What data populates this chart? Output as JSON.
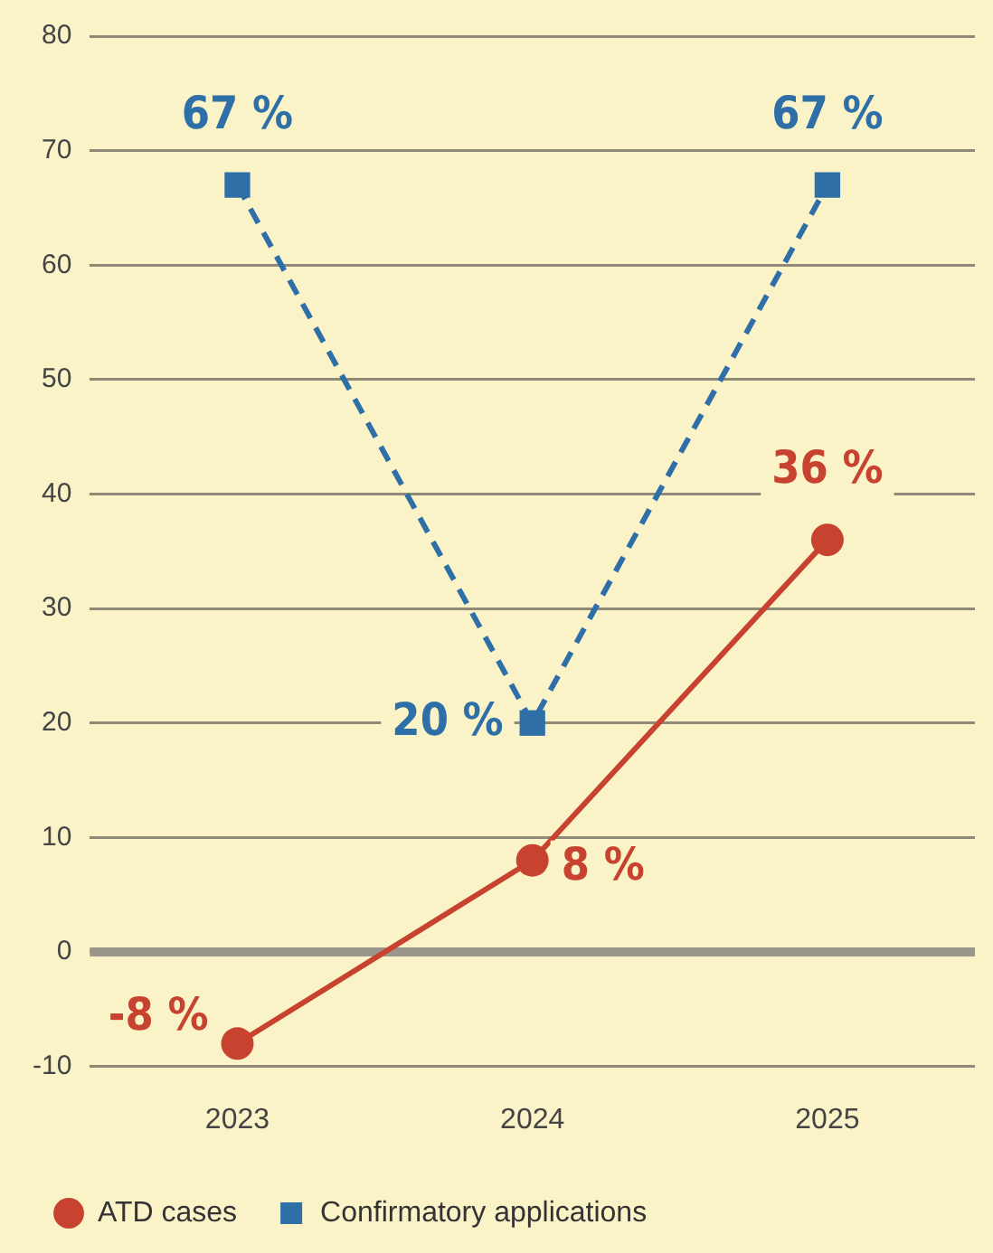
{
  "chart_data": {
    "type": "line",
    "categories": [
      "2023",
      "2024",
      "2025"
    ],
    "series": [
      {
        "name": "ATD cases",
        "color": "#c8432f",
        "values": [
          -8,
          8,
          36
        ],
        "value_labels": [
          "-8 %",
          "8 %",
          "36 %"
        ],
        "marker": "circle",
        "line_style": "solid"
      },
      {
        "name": "Confirmatory applications",
        "color": "#2f6fa8",
        "values": [
          67,
          20,
          67
        ],
        "value_labels": [
          "67 %",
          "20 %",
          "67 %"
        ],
        "marker": "square",
        "line_style": "dashed"
      }
    ],
    "ylim": [
      -10,
      80
    ],
    "yticks": [
      -10,
      0,
      10,
      20,
      30,
      40,
      50,
      60,
      70,
      80
    ],
    "grid": "y",
    "legend": "bottom left",
    "ref_lines": [
      {
        "axis": "y",
        "value": 0,
        "color": "#9b968c"
      }
    ]
  }
}
